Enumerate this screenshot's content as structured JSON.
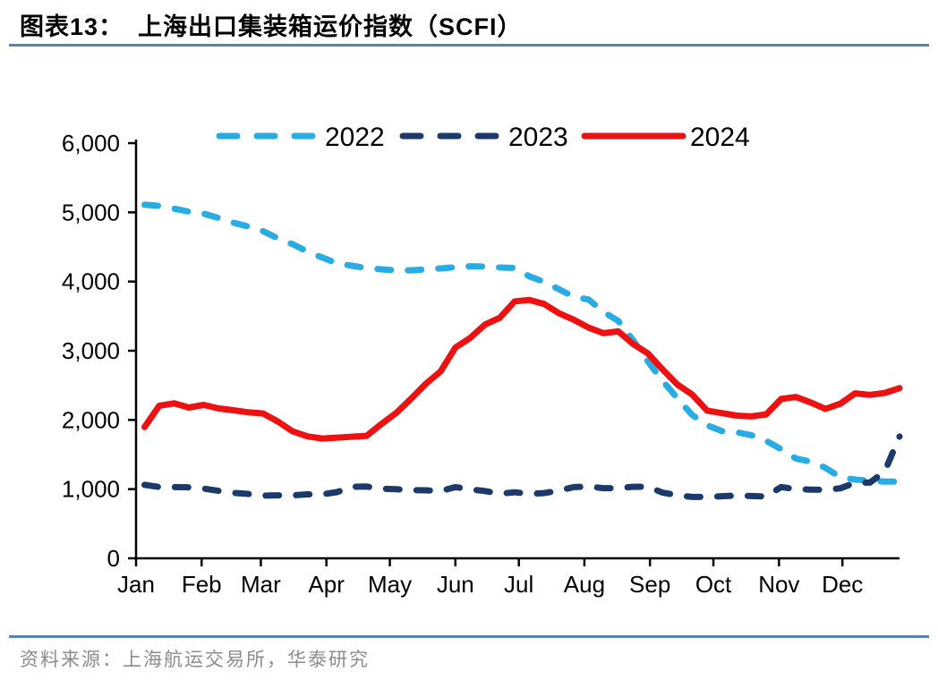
{
  "header": {
    "figure_label": "图表13：",
    "title": "上海出口集装箱运价指数（SCFI）"
  },
  "footer": {
    "source": "资料来源：上海航运交易所，华泰研究"
  },
  "colors": {
    "rule": "#5A80B4",
    "axis": "#000000",
    "label_text": "#000000",
    "source_text": "#8C8C8C",
    "series_2022": "#29ACE3",
    "series_2023": "#1B3A6B",
    "series_2024": "#EE1111"
  },
  "chart_data": {
    "type": "line",
    "title": "上海出口集装箱运价指数（SCFI）",
    "xlabel": "",
    "ylabel": "",
    "ylim": [
      0,
      6000
    ],
    "y_ticks": [
      0,
      1000,
      2000,
      3000,
      4000,
      5000,
      6000
    ],
    "y_tick_labels": [
      "0",
      "1,000",
      "2,000",
      "3,000",
      "4,000",
      "5,000",
      "6,000"
    ],
    "x_tick_labels": [
      "Jan",
      "Feb",
      "Mar",
      "Apr",
      "May",
      "Jun",
      "Jul",
      "Aug",
      "Sep",
      "Oct",
      "Nov",
      "Dec"
    ],
    "month_start_days": [
      0,
      31,
      59,
      90,
      120,
      151,
      181,
      212,
      243,
      273,
      304,
      334
    ],
    "x_unit": "weekly readings, day-of-year",
    "x_days": [
      4,
      11,
      18,
      25,
      32,
      39,
      46,
      53,
      60,
      67,
      74,
      81,
      88,
      95,
      102,
      109,
      116,
      123,
      130,
      137,
      144,
      151,
      158,
      165,
      172,
      179,
      186,
      193,
      200,
      207,
      214,
      221,
      228,
      235,
      242,
      249,
      256,
      263,
      270,
      277,
      284,
      291,
      298,
      305,
      312,
      319,
      326,
      333,
      340,
      347,
      354,
      361
    ],
    "grid": false,
    "legend_position": "top-center",
    "series": [
      {
        "name": "2022",
        "style": "dashed",
        "color": "#29ACE3",
        "values": [
          5110,
          5094,
          5053,
          5011,
          4981,
          4919,
          4851,
          4796,
          4729,
          4625,
          4540,
          4434,
          4348,
          4263,
          4228,
          4195,
          4177,
          4163,
          4162,
          4175,
          4190,
          4208,
          4221,
          4217,
          4203,
          4197,
          4074,
          3996,
          3887,
          3780,
          3740,
          3563,
          3430,
          3154,
          2848,
          2562,
          2313,
          2072,
          1923,
          1839,
          1822,
          1779,
          1698,
          1579,
          1443,
          1397,
          1307,
          1171,
          1138,
          1123,
          1108,
          1108
        ]
      },
      {
        "name": "2023",
        "style": "dashed",
        "color": "#1B3A6B",
        "values": [
          1061,
          1031,
          1029,
          1025,
          1007,
          975,
          947,
          931,
          906,
          910,
          909,
          924,
          924,
          957,
          1034,
          1037,
          1007,
          998,
          984,
          983,
          972,
          1029,
          997,
          972,
          934,
          954,
          932,
          943,
          979,
          1029,
          1039,
          1014,
          1014,
          1033,
          1034,
          949,
          911,
          887,
          887,
          898,
          906,
          900,
          894,
          1030,
          1000,
          993,
          990,
          1011,
          1093,
          1094,
          1255,
          1760
        ]
      },
      {
        "name": "2024",
        "style": "solid",
        "color": "#EE1111",
        "values": [
          1897,
          2206,
          2240,
          2179,
          2218,
          2166,
          2140,
          2110,
          2093,
          1979,
          1835,
          1763,
          1731,
          1745,
          1757,
          1770,
          1941,
          2100,
          2306,
          2521,
          2703,
          3045,
          3185,
          3379,
          3476,
          3714,
          3734,
          3675,
          3542,
          3448,
          3333,
          3254,
          3281,
          3098,
          2963,
          2727,
          2511,
          2366,
          2135,
          2099,
          2063,
          2051,
          2081,
          2303,
          2332,
          2252,
          2160,
          2234,
          2384,
          2362,
          2390,
          2460
        ]
      }
    ]
  }
}
